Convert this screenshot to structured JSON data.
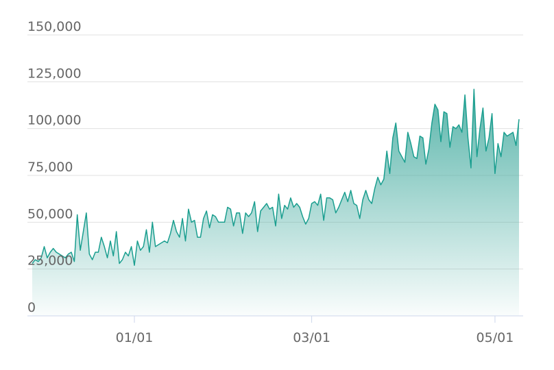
{
  "chart_data": {
    "type": "area",
    "x": [
      "11/28",
      "11/29",
      "11/30",
      "12/01",
      "12/02",
      "12/03",
      "12/04",
      "12/05",
      "12/06",
      "12/07",
      "12/08",
      "12/09",
      "12/10",
      "12/11",
      "12/12",
      "12/13",
      "12/14",
      "12/15",
      "12/16",
      "12/17",
      "12/18",
      "12/19",
      "12/20",
      "12/21",
      "12/22",
      "12/23",
      "12/24",
      "12/25",
      "12/26",
      "12/27",
      "12/28",
      "12/29",
      "12/30",
      "12/31",
      "01/01",
      "01/02",
      "01/03",
      "01/04",
      "01/05",
      "01/06",
      "01/07",
      "01/08",
      "01/09",
      "01/10",
      "01/11",
      "01/12",
      "01/13",
      "01/14",
      "01/15",
      "01/16",
      "01/17",
      "01/18",
      "01/19",
      "01/20",
      "01/21",
      "01/22",
      "01/23",
      "01/24",
      "01/25",
      "01/26",
      "01/27",
      "01/28",
      "01/29",
      "01/30",
      "01/31",
      "02/01",
      "02/02",
      "02/03",
      "02/04",
      "02/05",
      "02/06",
      "02/07",
      "02/08",
      "02/09",
      "02/10",
      "02/11",
      "02/12",
      "02/13",
      "02/14",
      "02/15",
      "02/16",
      "02/17",
      "02/18",
      "02/19",
      "02/20",
      "02/21",
      "02/22",
      "02/23",
      "02/24",
      "02/25",
      "02/26",
      "02/27",
      "02/28",
      "03/01",
      "03/02",
      "03/03",
      "03/04",
      "03/05",
      "03/06",
      "03/07",
      "03/08",
      "03/09",
      "03/10",
      "03/11",
      "03/12",
      "03/13",
      "03/14",
      "03/15",
      "03/16",
      "03/17",
      "03/18",
      "03/19",
      "03/20",
      "03/21",
      "03/22",
      "03/23",
      "03/24",
      "03/25",
      "03/26",
      "03/27",
      "03/28",
      "03/29",
      "03/30",
      "03/31",
      "04/01",
      "04/02",
      "04/03",
      "04/04",
      "04/05",
      "04/06",
      "04/07",
      "04/08",
      "04/09",
      "04/10",
      "04/11",
      "04/12",
      "04/13",
      "04/14",
      "04/15",
      "04/16",
      "04/17",
      "04/18",
      "04/19",
      "04/20",
      "04/21",
      "04/22",
      "04/23",
      "04/24",
      "04/25",
      "04/26",
      "04/27",
      "04/28",
      "04/29",
      "04/30",
      "05/01",
      "05/02",
      "05/03",
      "05/04",
      "05/05",
      "05/06",
      "05/07",
      "05/08",
      "05/09"
    ],
    "values": [
      28000,
      30000,
      29000,
      31000,
      37000,
      31000,
      34000,
      36000,
      34000,
      33000,
      32000,
      31000,
      33000,
      34000,
      29000,
      54000,
      35000,
      45000,
      55000,
      33000,
      30000,
      34000,
      34000,
      42000,
      37000,
      31000,
      40000,
      32000,
      45000,
      28000,
      30000,
      34000,
      32000,
      37000,
      27000,
      40000,
      35000,
      37000,
      46000,
      34000,
      50000,
      37000,
      38000,
      39000,
      40000,
      39000,
      44000,
      51000,
      45000,
      42000,
      52000,
      40000,
      57000,
      50000,
      51000,
      42000,
      42000,
      52000,
      56000,
      47000,
      54000,
      53000,
      50000,
      50000,
      50000,
      58000,
      57000,
      48000,
      55000,
      55000,
      44000,
      55000,
      53000,
      55000,
      61000,
      45000,
      56000,
      58000,
      60000,
      57000,
      58000,
      48000,
      65000,
      52000,
      59000,
      57000,
      63000,
      58000,
      60000,
      58000,
      53000,
      49000,
      52000,
      60000,
      61000,
      59000,
      65000,
      51000,
      63000,
      63000,
      62000,
      55000,
      58000,
      62000,
      66000,
      61000,
      67000,
      60000,
      59000,
      52000,
      62000,
      67000,
      62000,
      60000,
      68000,
      74000,
      70000,
      73000,
      88000,
      76000,
      95000,
      103000,
      88000,
      85000,
      82000,
      98000,
      92000,
      85000,
      84000,
      96000,
      95000,
      81000,
      89000,
      103000,
      113000,
      110000,
      93000,
      109000,
      108000,
      90000,
      101000,
      100000,
      102000,
      98000,
      118000,
      95000,
      79000,
      121000,
      85000,
      100000,
      111000,
      88000,
      95000,
      108000,
      76000,
      92000,
      85000,
      98000,
      96000,
      97000,
      98000,
      91000,
      105000
    ],
    "color": "#1a9e8f",
    "ylim": [
      0,
      150000
    ],
    "yticks": [
      0,
      {
        "value": 25000,
        "label": "25,000"
      },
      {
        "value": 50000,
        "label": "50,000"
      },
      {
        "value": 75000,
        "label": "75,000"
      },
      {
        "value": 100000,
        "label": "100,000"
      },
      {
        "value": 125000,
        "label": "125,000"
      },
      {
        "value": 150000,
        "label": "150,000"
      }
    ],
    "xticks": [
      "01/01",
      "03/01",
      "05/01"
    ],
    "grid": true
  }
}
